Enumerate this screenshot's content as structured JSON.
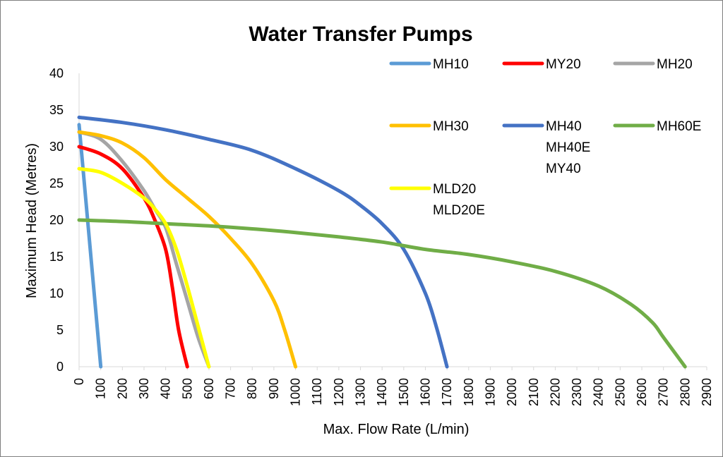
{
  "chart_data": {
    "type": "line",
    "title": "Water Transfer Pumps",
    "xlabel": "Max. Flow Rate (L/min)",
    "ylabel": "Maximum Head (Metres)",
    "xlim": [
      0,
      2900
    ],
    "ylim": [
      0,
      40
    ],
    "x_ticks": [
      "0",
      "100",
      "200",
      "300",
      "400",
      "500",
      "600",
      "700",
      "800",
      "900",
      "1000",
      "1100",
      "1200",
      "1300",
      "1400",
      "1500",
      "1600",
      "1700",
      "1800",
      "1900",
      "2000",
      "2100",
      "2200",
      "2300",
      "2400",
      "2500",
      "2600",
      "2700",
      "2800",
      "2900"
    ],
    "y_ticks": [
      "0",
      "5",
      "10",
      "15",
      "20",
      "25",
      "30",
      "35",
      "40"
    ],
    "grid": false,
    "legend_position": "top-right",
    "series": [
      {
        "name": "MH10",
        "color": "#5b9bd5",
        "legend_lines": [
          "MH10"
        ],
        "points": [
          [
            0,
            33
          ],
          [
            100,
            0
          ]
        ]
      },
      {
        "name": "MY20",
        "color": "#ff0000",
        "legend_lines": [
          "MY20"
        ],
        "points": [
          [
            0,
            30
          ],
          [
            100,
            29
          ],
          [
            200,
            27
          ],
          [
            300,
            23
          ],
          [
            350,
            20
          ],
          [
            400,
            16
          ],
          [
            430,
            11
          ],
          [
            460,
            5
          ],
          [
            500,
            0
          ]
        ]
      },
      {
        "name": "MH20",
        "color": "#a5a5a5",
        "legend_lines": [
          "MH20"
        ],
        "points": [
          [
            0,
            32
          ],
          [
            100,
            31
          ],
          [
            200,
            28
          ],
          [
            300,
            24
          ],
          [
            350,
            21.5
          ],
          [
            400,
            19
          ],
          [
            450,
            14
          ],
          [
            500,
            9
          ],
          [
            550,
            4
          ],
          [
            600,
            0
          ]
        ]
      },
      {
        "name": "MH30",
        "color": "#ffc000",
        "legend_lines": [
          "MH30"
        ],
        "points": [
          [
            0,
            32
          ],
          [
            100,
            31.5
          ],
          [
            200,
            30.5
          ],
          [
            300,
            28.5
          ],
          [
            400,
            25.5
          ],
          [
            500,
            23
          ],
          [
            600,
            20.5
          ],
          [
            700,
            17.5
          ],
          [
            800,
            14
          ],
          [
            900,
            9
          ],
          [
            950,
            5
          ],
          [
            1000,
            0
          ]
        ]
      },
      {
        "name": "MH40",
        "color": "#4472c4",
        "legend_lines": [
          "MH40",
          "MH40E",
          "MY40"
        ],
        "points": [
          [
            0,
            34
          ],
          [
            200,
            33.3
          ],
          [
            400,
            32.3
          ],
          [
            600,
            31
          ],
          [
            800,
            29.5
          ],
          [
            1000,
            27
          ],
          [
            1200,
            24
          ],
          [
            1300,
            22
          ],
          [
            1400,
            19.5
          ],
          [
            1500,
            16
          ],
          [
            1600,
            10
          ],
          [
            1650,
            5.5
          ],
          [
            1700,
            0
          ]
        ]
      },
      {
        "name": "MH60E",
        "color": "#70ad47",
        "legend_lines": [
          "MH60E"
        ],
        "points": [
          [
            0,
            20
          ],
          [
            200,
            19.8
          ],
          [
            400,
            19.5
          ],
          [
            600,
            19.2
          ],
          [
            800,
            18.8
          ],
          [
            1000,
            18.3
          ],
          [
            1200,
            17.7
          ],
          [
            1400,
            17
          ],
          [
            1600,
            16
          ],
          [
            1800,
            15.3
          ],
          [
            2000,
            14.3
          ],
          [
            2200,
            13
          ],
          [
            2400,
            11
          ],
          [
            2550,
            8.5
          ],
          [
            2650,
            6
          ],
          [
            2700,
            4
          ],
          [
            2800,
            0
          ]
        ]
      },
      {
        "name": "MLD20",
        "color": "#ffff00",
        "legend_lines": [
          "MLD20",
          "MLD20E"
        ],
        "points": [
          [
            0,
            27
          ],
          [
            100,
            26.5
          ],
          [
            200,
            25
          ],
          [
            300,
            23
          ],
          [
            350,
            21.5
          ],
          [
            400,
            19.5
          ],
          [
            450,
            16
          ],
          [
            500,
            11
          ],
          [
            550,
            5.5
          ],
          [
            600,
            0
          ]
        ]
      }
    ]
  }
}
